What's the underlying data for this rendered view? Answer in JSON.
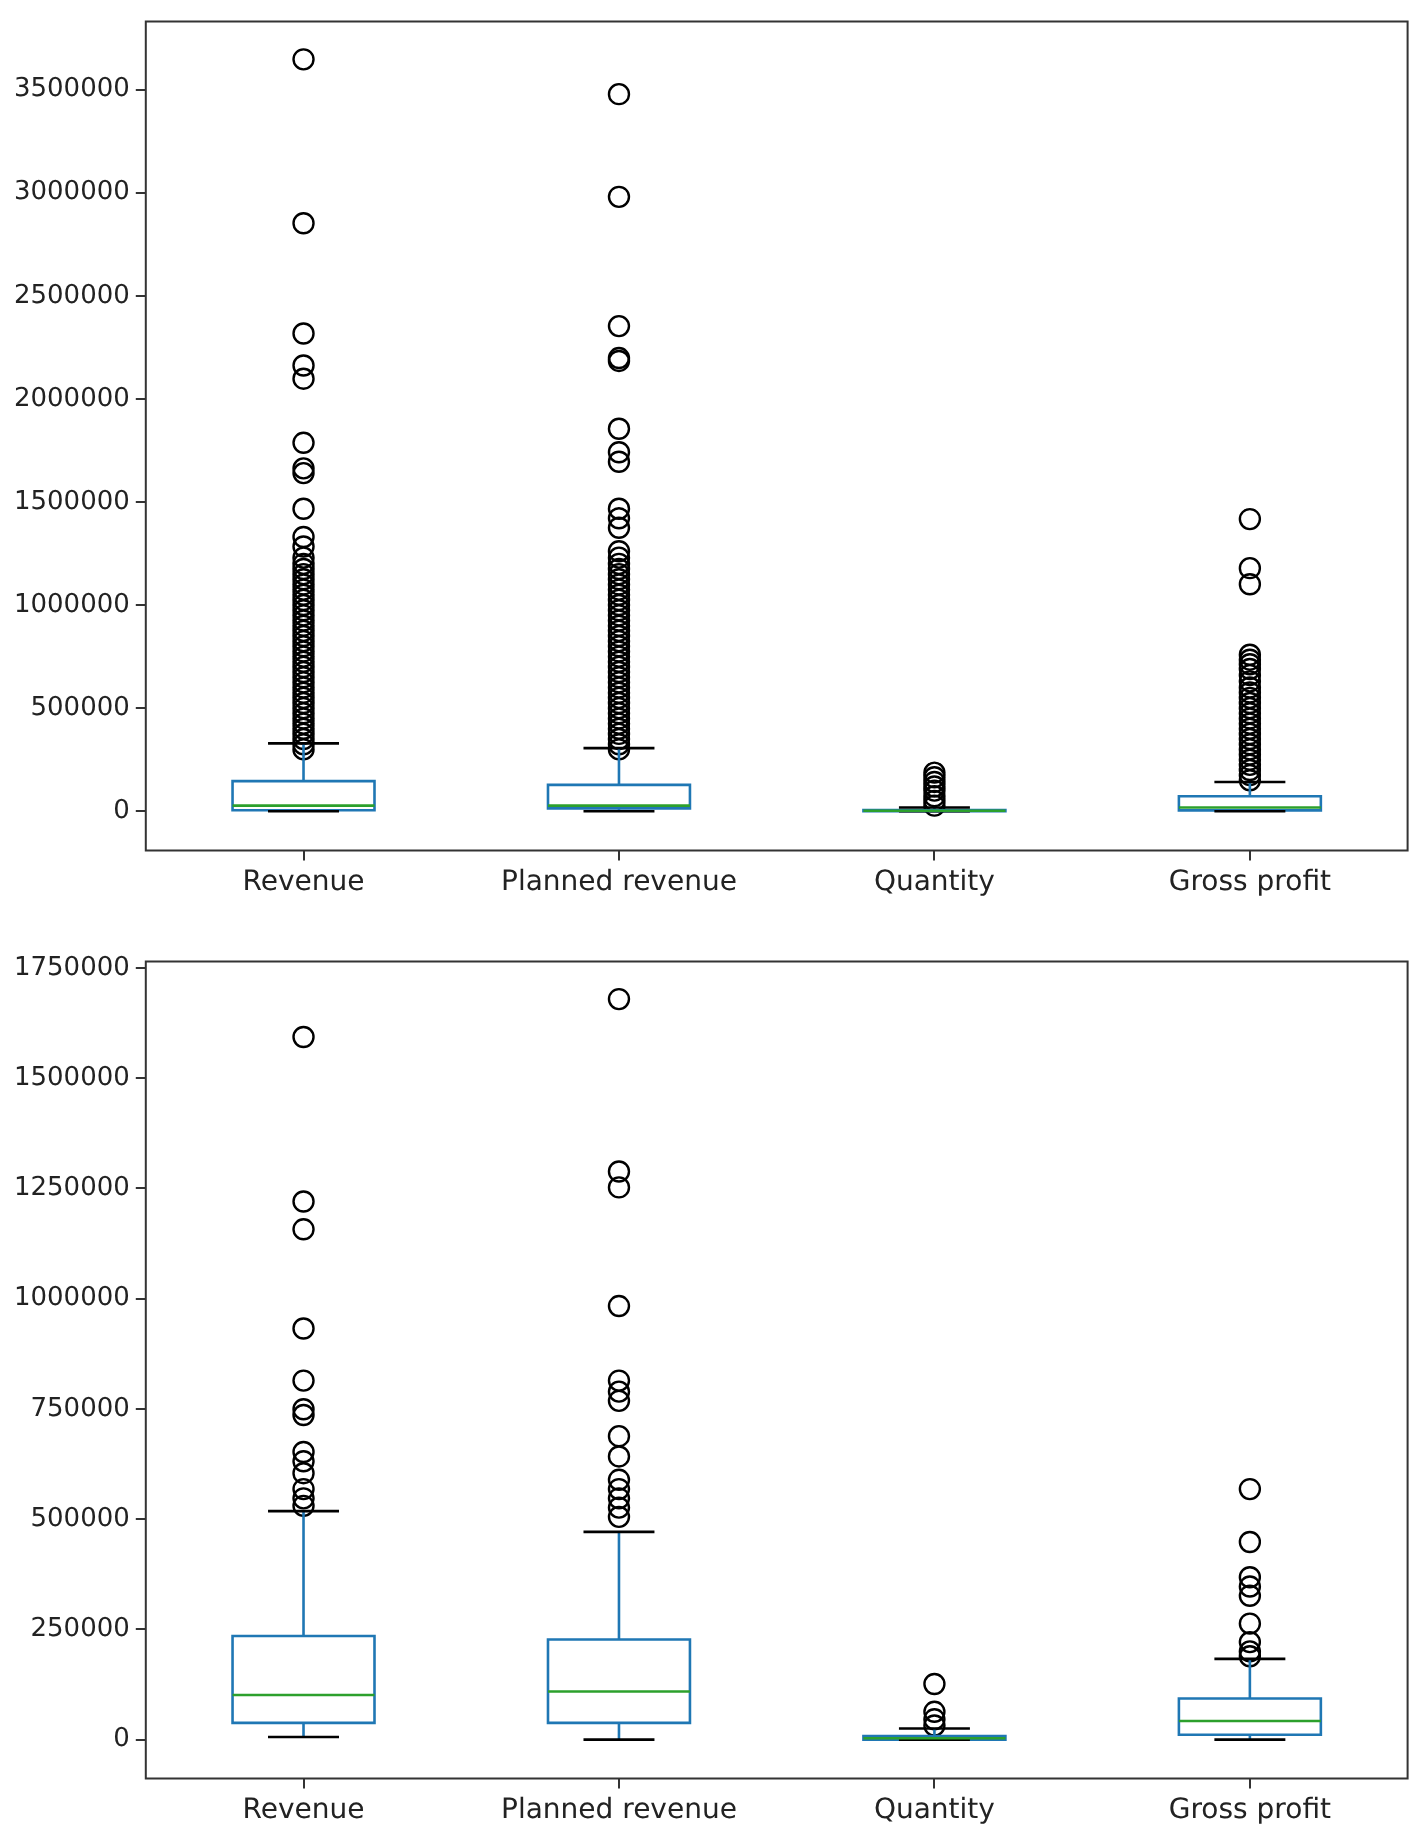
{
  "chart_data": [
    {
      "type": "box",
      "categories": [
        "Revenue",
        "Planned revenue",
        "Quantity",
        "Gross profit"
      ],
      "color": "#1f77b4",
      "grid": false,
      "ylim": [
        -190000,
        3830000
      ],
      "yticks": [
        0,
        500000,
        1000000,
        1500000,
        2000000,
        2500000,
        3000000,
        3500000
      ],
      "boxes": [
        {
          "low": 0,
          "q1": 5000,
          "median": 27000,
          "q3": 146000,
          "high": 329000,
          "outliers": [
            3647000,
            2852000,
            2317000,
            2162000,
            2098000,
            1787000,
            1663000,
            1640000,
            1467000,
            1330000,
            1284000,
            1230000,
            1200000,
            1175000,
            1150000,
            1125000,
            1100000,
            1075000,
            1050000,
            1025000,
            1000000,
            975000,
            950000,
            925000,
            900000,
            875000,
            850000,
            825000,
            800000,
            775000,
            750000,
            725000,
            700000,
            675000,
            650000,
            625000,
            600000,
            575000,
            550000,
            525000,
            500000,
            475000,
            450000,
            425000,
            400000,
            375000,
            350000,
            325000,
            300000
          ]
        },
        {
          "low": 0,
          "q1": 14000,
          "median": 27000,
          "q3": 128000,
          "high": 306000,
          "outliers": [
            3478000,
            2980000,
            2353000,
            2198000,
            2184000,
            1855000,
            1741000,
            1695000,
            1467000,
            1421000,
            1375000,
            1261000,
            1230000,
            1200000,
            1175000,
            1150000,
            1125000,
            1100000,
            1075000,
            1050000,
            1025000,
            1000000,
            975000,
            950000,
            925000,
            900000,
            875000,
            850000,
            825000,
            800000,
            775000,
            750000,
            725000,
            700000,
            675000,
            650000,
            625000,
            600000,
            575000,
            550000,
            525000,
            500000,
            475000,
            450000,
            425000,
            400000,
            375000,
            350000,
            325000,
            300000
          ]
        },
        {
          "low": 0,
          "q1": 0,
          "median": 2000,
          "q3": 6000,
          "high": 18000,
          "outliers": [
            187000,
            165000,
            142000,
            120000,
            100000,
            73000,
            50000,
            27000
          ]
        },
        {
          "low": 0,
          "q1": 4000,
          "median": 18000,
          "q3": 73000,
          "high": 142000,
          "outliers": [
            1417000,
            1179000,
            1101000,
            759000,
            735000,
            713000,
            690000,
            660000,
            630000,
            600000,
            576000,
            550000,
            525000,
            500000,
            475000,
            450000,
            425000,
            400000,
            375000,
            350000,
            325000,
            300000,
            275000,
            250000,
            225000,
            200000,
            175000,
            150000
          ]
        }
      ]
    },
    {
      "type": "box",
      "categories": [
        "Revenue",
        "Planned revenue",
        "Quantity",
        "Gross profit"
      ],
      "color": "#1f77b4",
      "grid": false,
      "ylim": [
        -88000,
        1764000
      ],
      "yticks": [
        0,
        250000,
        500000,
        750000,
        1000000,
        1250000,
        1500000,
        1750000
      ],
      "boxes": [
        {
          "low": 6000,
          "q1": 38000,
          "median": 101000,
          "q3": 235000,
          "high": 518000,
          "outliers": [
            1593000,
            1220000,
            1157000,
            932000,
            814000,
            749000,
            736000,
            652000,
            631000,
            604000,
            568000,
            547000,
            530000
          ]
        },
        {
          "low": 0,
          "q1": 38000,
          "median": 109000,
          "q3": 227000,
          "high": 471000,
          "outliers": [
            1679000,
            1288000,
            1252000,
            983000,
            814000,
            789000,
            768000,
            688000,
            642000,
            589000,
            568000,
            547000,
            526000,
            505000
          ]
        },
        {
          "low": 0,
          "q1": 0,
          "median": 3000,
          "q3": 8000,
          "high": 25000,
          "outliers": [
            126000,
            63000,
            46000,
            32000
          ]
        },
        {
          "low": 0,
          "q1": 11000,
          "median": 42000,
          "q3": 93000,
          "high": 183000,
          "outliers": [
            568000,
            448000,
            368000,
            347000,
            326000,
            263000,
            221000,
            200000,
            189000
          ]
        }
      ]
    }
  ]
}
